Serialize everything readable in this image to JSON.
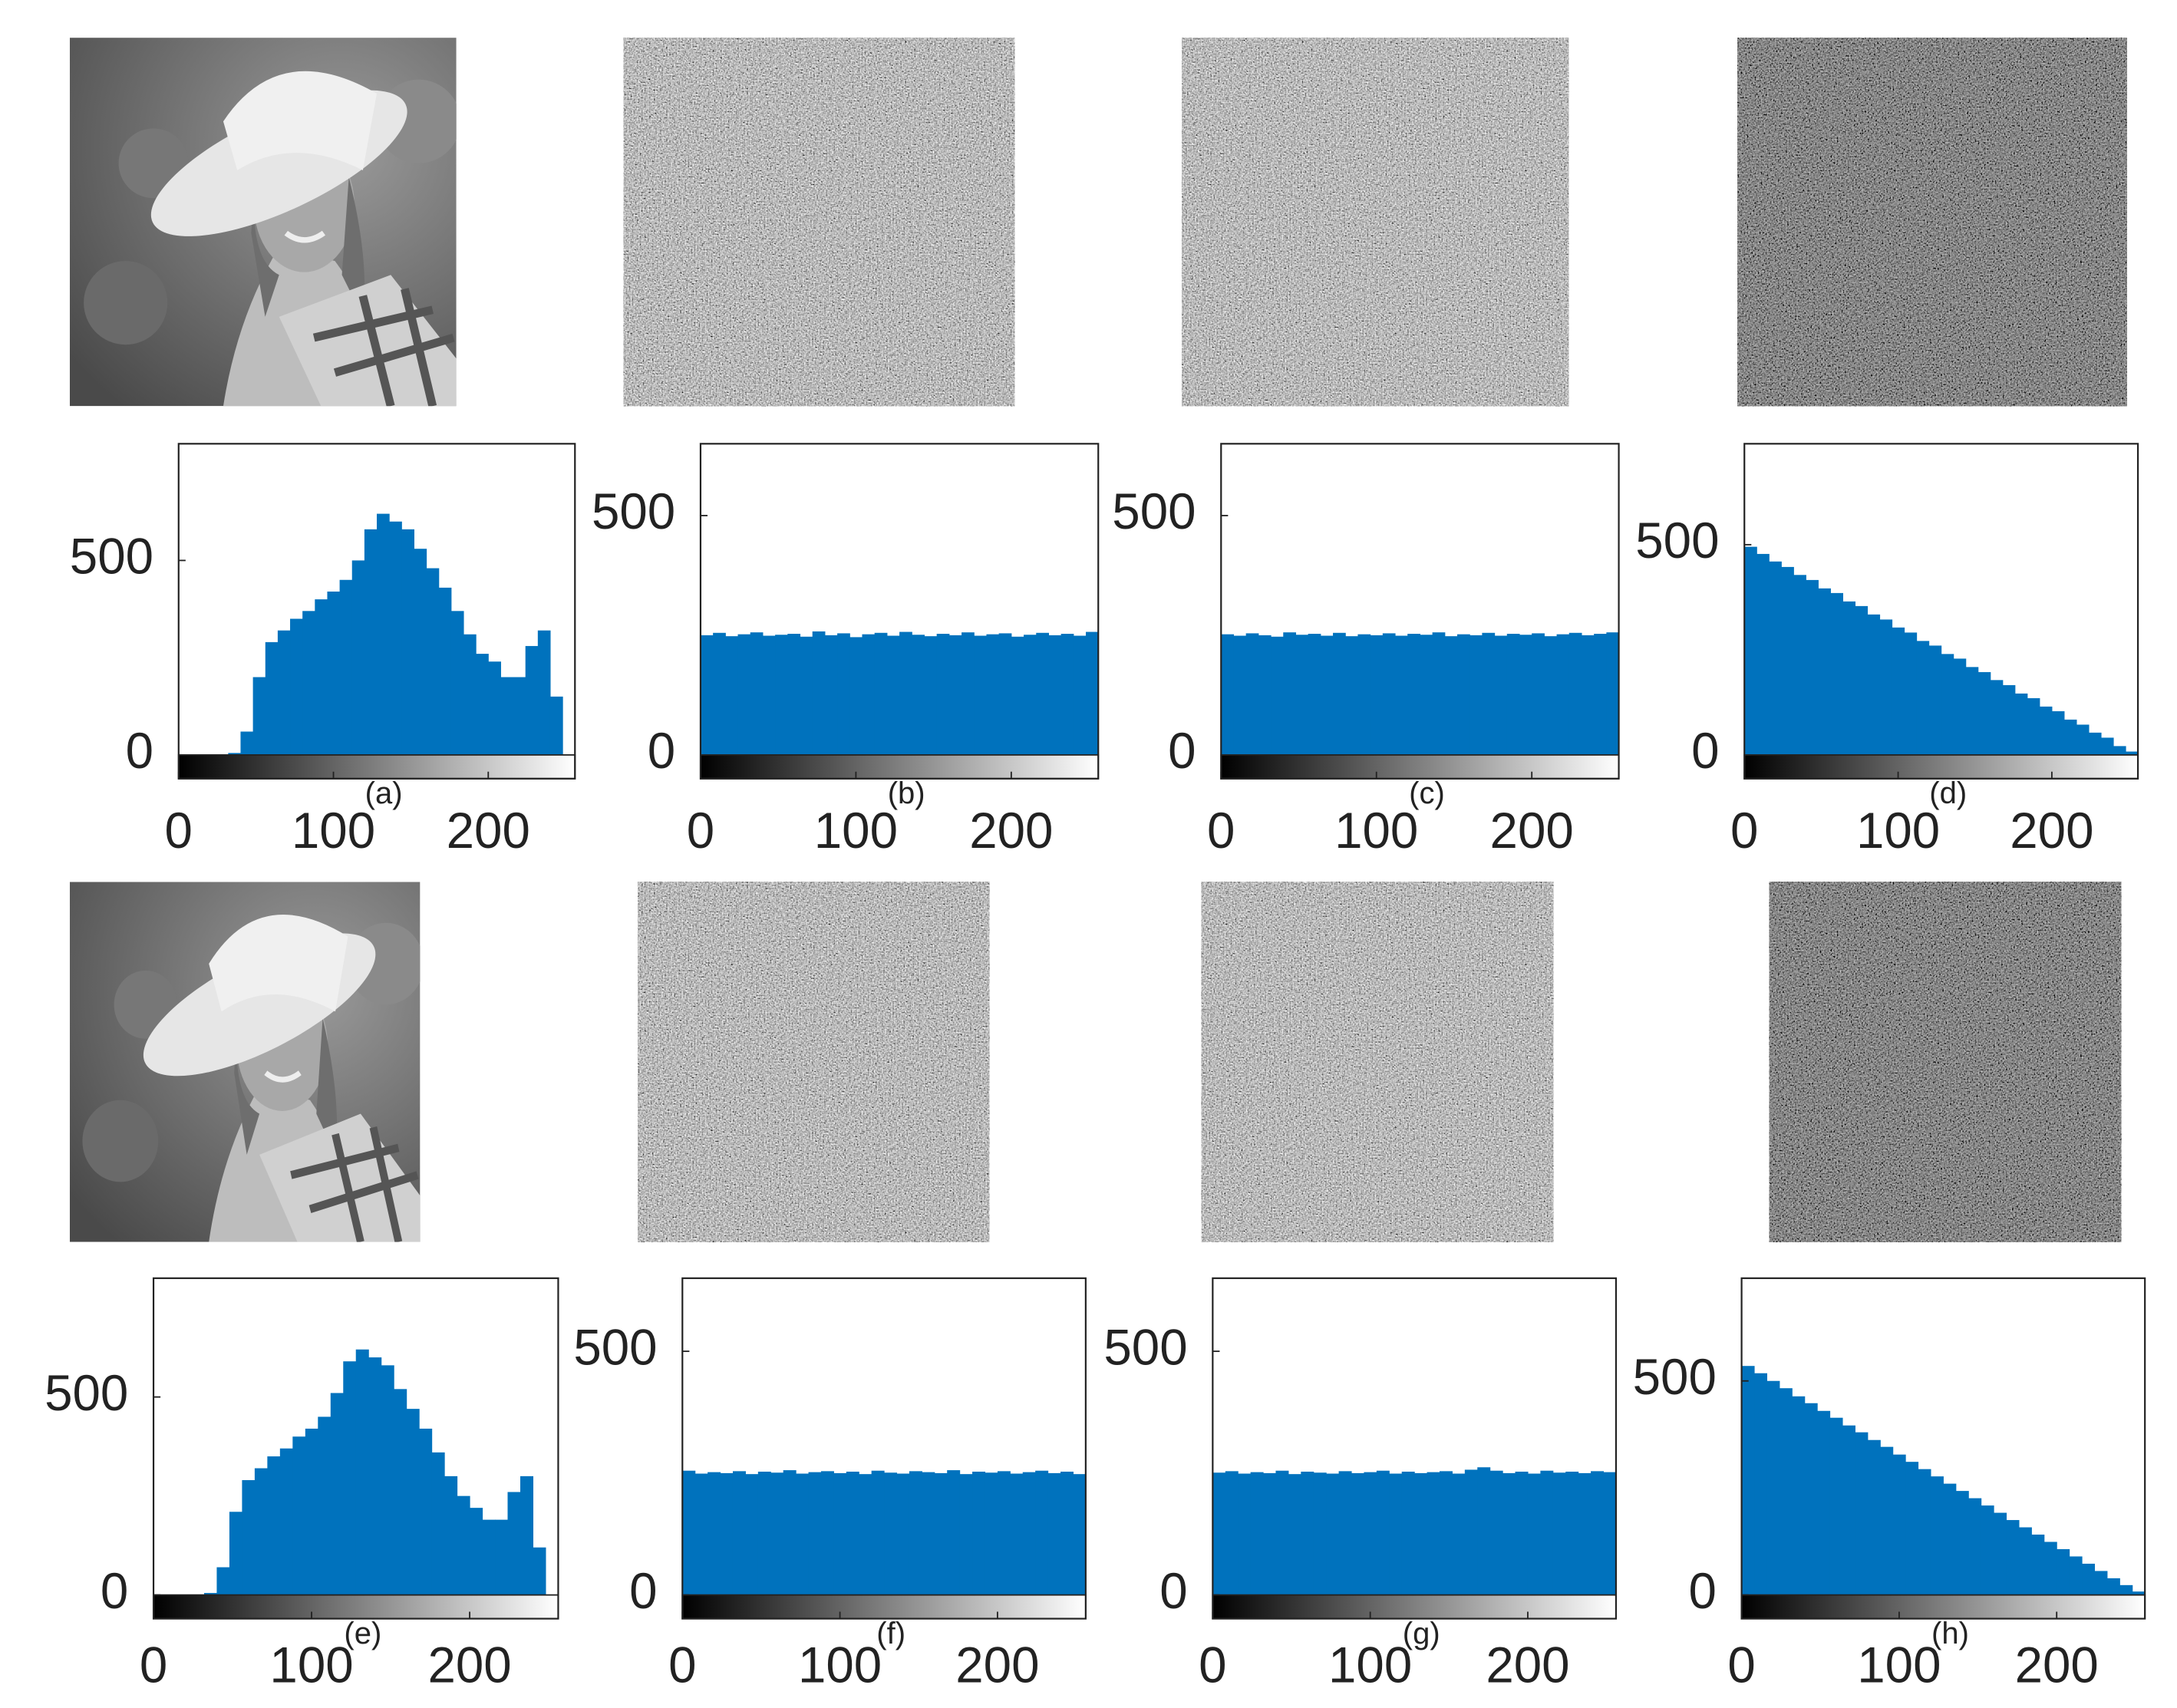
{
  "chart_data": [
    {
      "type": "histogram",
      "caption": "(a)",
      "color": "#0072bd",
      "bins": [
        0,
        8,
        16,
        24,
        32,
        40,
        48,
        56,
        64,
        72,
        80,
        88,
        96,
        104,
        112,
        120,
        128,
        136,
        144,
        152,
        160,
        168,
        176,
        184,
        192,
        200,
        208,
        216,
        224,
        232,
        240,
        248,
        256
      ],
      "values": [
        0,
        0,
        0,
        0,
        5,
        60,
        200,
        290,
        320,
        350,
        370,
        400,
        420,
        450,
        500,
        580,
        620,
        600,
        580,
        530,
        480,
        430,
        370,
        310,
        260,
        240,
        200,
        200,
        280,
        320,
        150,
        0
      ],
      "xlim": [
        0,
        256
      ],
      "xticks": [
        0,
        100,
        200
      ],
      "ylim": [
        0,
        800
      ],
      "yticks": [
        0,
        500
      ]
    },
    {
      "type": "histogram",
      "caption": "(b)",
      "color": "#0072bd",
      "bins": [
        0,
        8,
        16,
        24,
        32,
        40,
        48,
        56,
        64,
        72,
        80,
        88,
        96,
        104,
        112,
        120,
        128,
        136,
        144,
        152,
        160,
        168,
        176,
        184,
        192,
        200,
        208,
        216,
        224,
        232,
        240,
        248,
        256
      ],
      "values": [
        250,
        255,
        248,
        252,
        256,
        249,
        251,
        253,
        247,
        258,
        250,
        254,
        246,
        252,
        255,
        249,
        257,
        251,
        248,
        253,
        250,
        256,
        249,
        252,
        254,
        247,
        251,
        255,
        250,
        253,
        249,
        257
      ],
      "xlim": [
        0,
        256
      ],
      "xticks": [
        0,
        100,
        200
      ],
      "ylim": [
        0,
        650
      ],
      "yticks": [
        0,
        500
      ]
    },
    {
      "type": "histogram",
      "caption": "(c)",
      "color": "#0072bd",
      "bins": [
        0,
        8,
        16,
        24,
        32,
        40,
        48,
        56,
        64,
        72,
        80,
        88,
        96,
        104,
        112,
        120,
        128,
        136,
        144,
        152,
        160,
        168,
        176,
        184,
        192,
        200,
        208,
        216,
        224,
        232,
        240,
        248,
        256
      ],
      "values": [
        252,
        249,
        254,
        250,
        247,
        256,
        251,
        253,
        249,
        255,
        248,
        252,
        250,
        254,
        249,
        253,
        251,
        256,
        248,
        252,
        250,
        255,
        249,
        253,
        251,
        254,
        248,
        252,
        255,
        250,
        253,
        256
      ],
      "xlim": [
        0,
        256
      ],
      "xticks": [
        0,
        100,
        200
      ],
      "ylim": [
        0,
        650
      ],
      "yticks": [
        0,
        500
      ]
    },
    {
      "type": "histogram",
      "caption": "(d)",
      "color": "#0072bd",
      "bins": [
        0,
        8,
        16,
        24,
        32,
        40,
        48,
        56,
        64,
        72,
        80,
        88,
        96,
        104,
        112,
        120,
        128,
        136,
        144,
        152,
        160,
        168,
        176,
        184,
        192,
        200,
        208,
        216,
        224,
        232,
        240,
        248,
        256
      ],
      "values": [
        495,
        478,
        460,
        447,
        428,
        416,
        396,
        385,
        365,
        354,
        334,
        322,
        303,
        291,
        271,
        260,
        240,
        229,
        209,
        197,
        178,
        166,
        146,
        135,
        115,
        104,
        84,
        72,
        53,
        41,
        21,
        8
      ],
      "xlim": [
        0,
        256
      ],
      "xticks": [
        0,
        100,
        200
      ],
      "ylim": [
        0,
        740
      ],
      "yticks": [
        0,
        500
      ]
    },
    {
      "type": "histogram",
      "caption": "(e)",
      "color": "#0072bd",
      "bins": [
        0,
        8,
        16,
        24,
        32,
        40,
        48,
        56,
        64,
        72,
        80,
        88,
        96,
        104,
        112,
        120,
        128,
        136,
        144,
        152,
        160,
        168,
        176,
        184,
        192,
        200,
        208,
        216,
        224,
        232,
        240,
        248,
        256
      ],
      "values": [
        0,
        0,
        0,
        0,
        5,
        70,
        210,
        290,
        320,
        350,
        370,
        400,
        420,
        450,
        510,
        590,
        620,
        600,
        580,
        520,
        470,
        420,
        360,
        300,
        250,
        220,
        190,
        190,
        260,
        300,
        120,
        0
      ],
      "xlim": [
        0,
        256
      ],
      "xticks": [
        0,
        100,
        200
      ],
      "ylim": [
        0,
        800
      ],
      "yticks": [
        0,
        500
      ]
    },
    {
      "type": "histogram",
      "caption": "(f)",
      "color": "#0072bd",
      "bins": [
        0,
        8,
        16,
        24,
        32,
        40,
        48,
        56,
        64,
        72,
        80,
        88,
        96,
        104,
        112,
        120,
        128,
        136,
        144,
        152,
        160,
        168,
        176,
        184,
        192,
        200,
        208,
        216,
        224,
        232,
        240,
        248,
        256
      ],
      "values": [
        255,
        249,
        252,
        250,
        254,
        248,
        253,
        251,
        256,
        249,
        252,
        254,
        250,
        253,
        248,
        255,
        251,
        249,
        254,
        252,
        250,
        256,
        248,
        253,
        251,
        254,
        249,
        252,
        255,
        250,
        253,
        248
      ],
      "xlim": [
        0,
        256
      ],
      "xticks": [
        0,
        100,
        200
      ],
      "ylim": [
        0,
        650
      ],
      "yticks": [
        0,
        500
      ]
    },
    {
      "type": "histogram",
      "caption": "(g)",
      "color": "#0072bd",
      "bins": [
        0,
        8,
        16,
        24,
        32,
        40,
        48,
        56,
        64,
        72,
        80,
        88,
        96,
        104,
        112,
        120,
        128,
        136,
        144,
        152,
        160,
        168,
        176,
        184,
        192,
        200,
        208,
        216,
        224,
        232,
        240,
        248,
        256
      ],
      "values": [
        251,
        254,
        249,
        252,
        250,
        255,
        248,
        253,
        251,
        249,
        254,
        250,
        252,
        255,
        249,
        253,
        250,
        252,
        254,
        249,
        257,
        262,
        255,
        250,
        253,
        249,
        255,
        251,
        253,
        250,
        254,
        252
      ],
      "xlim": [
        0,
        256
      ],
      "xticks": [
        0,
        100,
        200
      ],
      "ylim": [
        0,
        650
      ],
      "yticks": [
        0,
        500
      ]
    },
    {
      "type": "histogram",
      "caption": "(h)",
      "color": "#0072bd",
      "bins": [
        0,
        8,
        16,
        24,
        32,
        40,
        48,
        56,
        64,
        72,
        80,
        88,
        96,
        104,
        112,
        120,
        128,
        136,
        144,
        152,
        160,
        168,
        176,
        184,
        192,
        200,
        208,
        216,
        224,
        232,
        240,
        248,
        256
      ],
      "values": [
        535,
        518,
        500,
        483,
        464,
        448,
        430,
        414,
        396,
        380,
        362,
        346,
        328,
        311,
        294,
        277,
        260,
        243,
        226,
        209,
        192,
        175,
        158,
        141,
        124,
        107,
        90,
        73,
        56,
        39,
        23,
        8
      ],
      "xlim": [
        0,
        256
      ],
      "xticks": [
        0,
        100,
        200
      ],
      "ylim": [
        0,
        740
      ],
      "yticks": [
        0,
        500
      ]
    }
  ]
}
